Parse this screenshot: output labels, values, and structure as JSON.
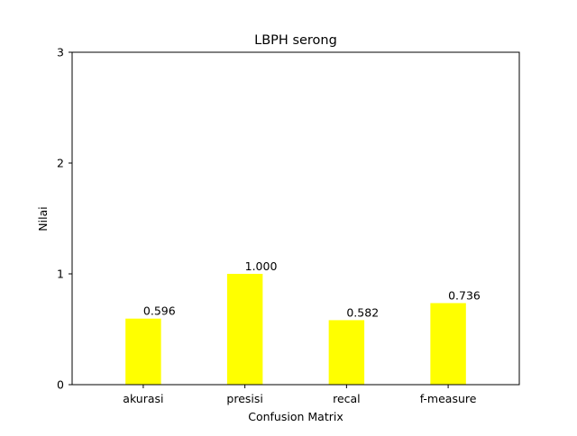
{
  "chart_data": {
    "type": "bar",
    "title": "LBPH serong",
    "xlabel": "Confusion Matrix",
    "ylabel": "Nilai",
    "categories": [
      "akurasi",
      "presisi",
      "recal",
      "f-measure"
    ],
    "values": [
      0.596,
      1.0,
      0.582,
      0.736
    ],
    "value_labels": [
      "0.596",
      "1.000",
      "0.582",
      "0.736"
    ],
    "ylim": [
      0,
      3
    ],
    "yticks": [
      0,
      1,
      2,
      3
    ],
    "ytick_labels": [
      "0",
      "1",
      "2",
      "3"
    ],
    "grid": false,
    "legend": "none",
    "bar_color": "#ffff00",
    "axis_color": "#000000"
  }
}
